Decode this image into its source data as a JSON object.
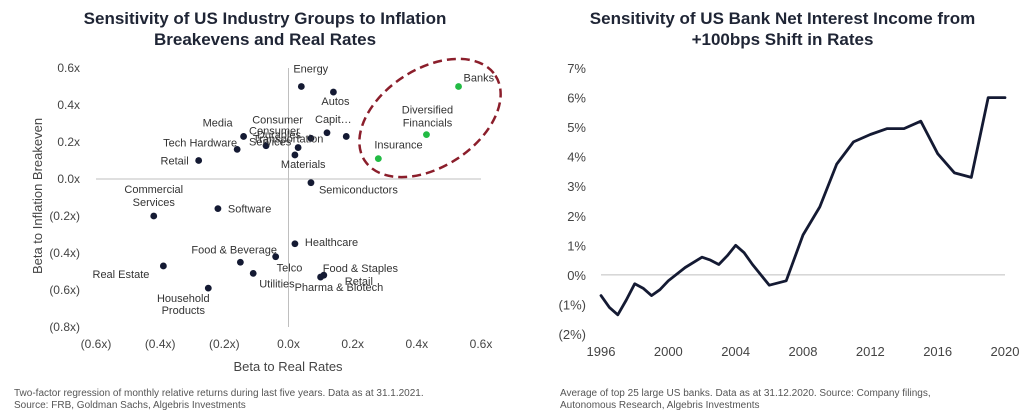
{
  "left_panel": {
    "title_line1": "Sensitivity of US Industry Groups to Inflation",
    "title_line2": "Breakevens and Real Rates",
    "note_line1": "Two-factor regression of monthly relative returns during last five years.  Data as at 31.1.2021.",
    "note_line2": "Source:  FRB, Goldman Sachs, Algebris Investments"
  },
  "right_panel": {
    "title_line1": "Sensitivity of US Bank Net Interest Income from",
    "title_line2": "+100bps Shift in Rates",
    "note_line1": "Average of top 25 large US banks.  Data as at 31.12.2020.  Source:  Company filings,",
    "note_line2": "Autonomous Research, Algebris Investments"
  },
  "colors": {
    "title": "#1f2535",
    "dot": "#141a33",
    "highlight_dot": "#22bb44",
    "ellipse": "#8b1e2b",
    "line": "#141a33",
    "axis": "#bfbfbf"
  },
  "chart_data": [
    {
      "type": "scatter",
      "title": "Sensitivity of US Industry Groups to Inflation Breakevens and Real Rates",
      "xlabel": "Beta to Real Rates",
      "ylabel": "Beta to Inflation Breakeven",
      "xlim": [
        -0.6,
        0.6
      ],
      "ylim": [
        -0.8,
        0.6
      ],
      "x_ticks": [
        "(0.6x)",
        "(0.4x)",
        "(0.2x)",
        "0.0x",
        "0.2x",
        "0.4x",
        "0.6x"
      ],
      "y_ticks": [
        "0.6x",
        "0.4x",
        "0.2x",
        "0.0x",
        "(0.2x)",
        "(0.4x)",
        "(0.6x)",
        "(0.8x)"
      ],
      "grid": false,
      "highlight_group": "ellipse around Banks, Diversified Financials, Insurance",
      "points": [
        {
          "label": "Energy",
          "x": 0.04,
          "y": 0.5,
          "highlight": false
        },
        {
          "label": "Autos",
          "x": 0.14,
          "y": 0.47,
          "highlight": false
        },
        {
          "label": "Media",
          "x": -0.14,
          "y": 0.23,
          "highlight": false
        },
        {
          "label": "Consumer Durables",
          "x": 0.07,
          "y": 0.22,
          "highlight": false
        },
        {
          "label": "Capit…",
          "x": 0.12,
          "y": 0.25,
          "highlight": false
        },
        {
          "label": "",
          "x": 0.18,
          "y": 0.23,
          "highlight": false
        },
        {
          "label": "Tech Hardware",
          "x": -0.16,
          "y": 0.16,
          "highlight": false
        },
        {
          "label": "Consumer Services",
          "x": -0.07,
          "y": 0.18,
          "highlight": false
        },
        {
          "label": "Transportation",
          "x": 0.03,
          "y": 0.17,
          "highlight": false
        },
        {
          "label": "Materials",
          "x": 0.02,
          "y": 0.13,
          "highlight": false
        },
        {
          "label": "Retail",
          "x": -0.28,
          "y": 0.1,
          "highlight": false
        },
        {
          "label": "Semiconductors",
          "x": 0.07,
          "y": -0.02,
          "highlight": false
        },
        {
          "label": "Commercial Services",
          "x": -0.42,
          "y": -0.2,
          "highlight": false
        },
        {
          "label": "Software",
          "x": -0.22,
          "y": -0.16,
          "highlight": false
        },
        {
          "label": "Healthcare",
          "x": 0.02,
          "y": -0.35,
          "highlight": false
        },
        {
          "label": "Food & Beverage",
          "x": -0.15,
          "y": -0.45,
          "highlight": false
        },
        {
          "label": "Telco",
          "x": -0.04,
          "y": -0.42,
          "highlight": false
        },
        {
          "label": "Real Estate",
          "x": -0.39,
          "y": -0.47,
          "highlight": false
        },
        {
          "label": "Utilities",
          "x": -0.11,
          "y": -0.51,
          "highlight": false
        },
        {
          "label": "Food & Staples Retail",
          "x": 0.11,
          "y": -0.52,
          "highlight": false
        },
        {
          "label": "Pharma & Biotech",
          "x": 0.1,
          "y": -0.53,
          "highlight": false
        },
        {
          "label": "Household Products",
          "x": -0.25,
          "y": -0.59,
          "highlight": false
        },
        {
          "label": "Banks",
          "x": 0.53,
          "y": 0.5,
          "highlight": true
        },
        {
          "label": "Diversified Financials",
          "x": 0.43,
          "y": 0.24,
          "highlight": true
        },
        {
          "label": "Insurance",
          "x": 0.28,
          "y": 0.11,
          "highlight": true
        }
      ]
    },
    {
      "type": "line",
      "title": "Sensitivity of US Bank Net Interest Income from +100bps Shift in Rates",
      "xlim": [
        1996,
        2020
      ],
      "ylim": [
        -2,
        7
      ],
      "x_ticks": [
        "1996",
        "2000",
        "2004",
        "2008",
        "2012",
        "2016",
        "2020"
      ],
      "y_ticks": [
        "7%",
        "6%",
        "5%",
        "4%",
        "3%",
        "2%",
        "1%",
        "0%",
        "(1%)",
        "(2%)"
      ],
      "grid": false,
      "series": [
        {
          "x": [
            1996,
            1996.5,
            1997,
            1997.5,
            1998,
            1998.5,
            1999,
            1999.5,
            2000,
            2001,
            2002,
            2002.5,
            2003,
            2003.5,
            2004,
            2004.5,
            2005,
            2005.5,
            2006,
            2007,
            2008,
            2009,
            2010,
            2011,
            2012,
            2013,
            2014,
            2015,
            2016,
            2017,
            2018,
            2019,
            2020
          ],
          "values": [
            -0.7,
            -1.1,
            -1.35,
            -0.85,
            -0.3,
            -0.45,
            -0.7,
            -0.5,
            -0.2,
            0.25,
            0.6,
            0.5,
            0.35,
            0.65,
            1.0,
            0.75,
            0.35,
            0.0,
            -0.35,
            -0.2,
            1.35,
            2.3,
            3.75,
            4.5,
            4.75,
            4.95,
            4.95,
            5.2,
            4.1,
            3.45,
            3.3,
            6.0,
            6.0
          ]
        }
      ]
    }
  ]
}
